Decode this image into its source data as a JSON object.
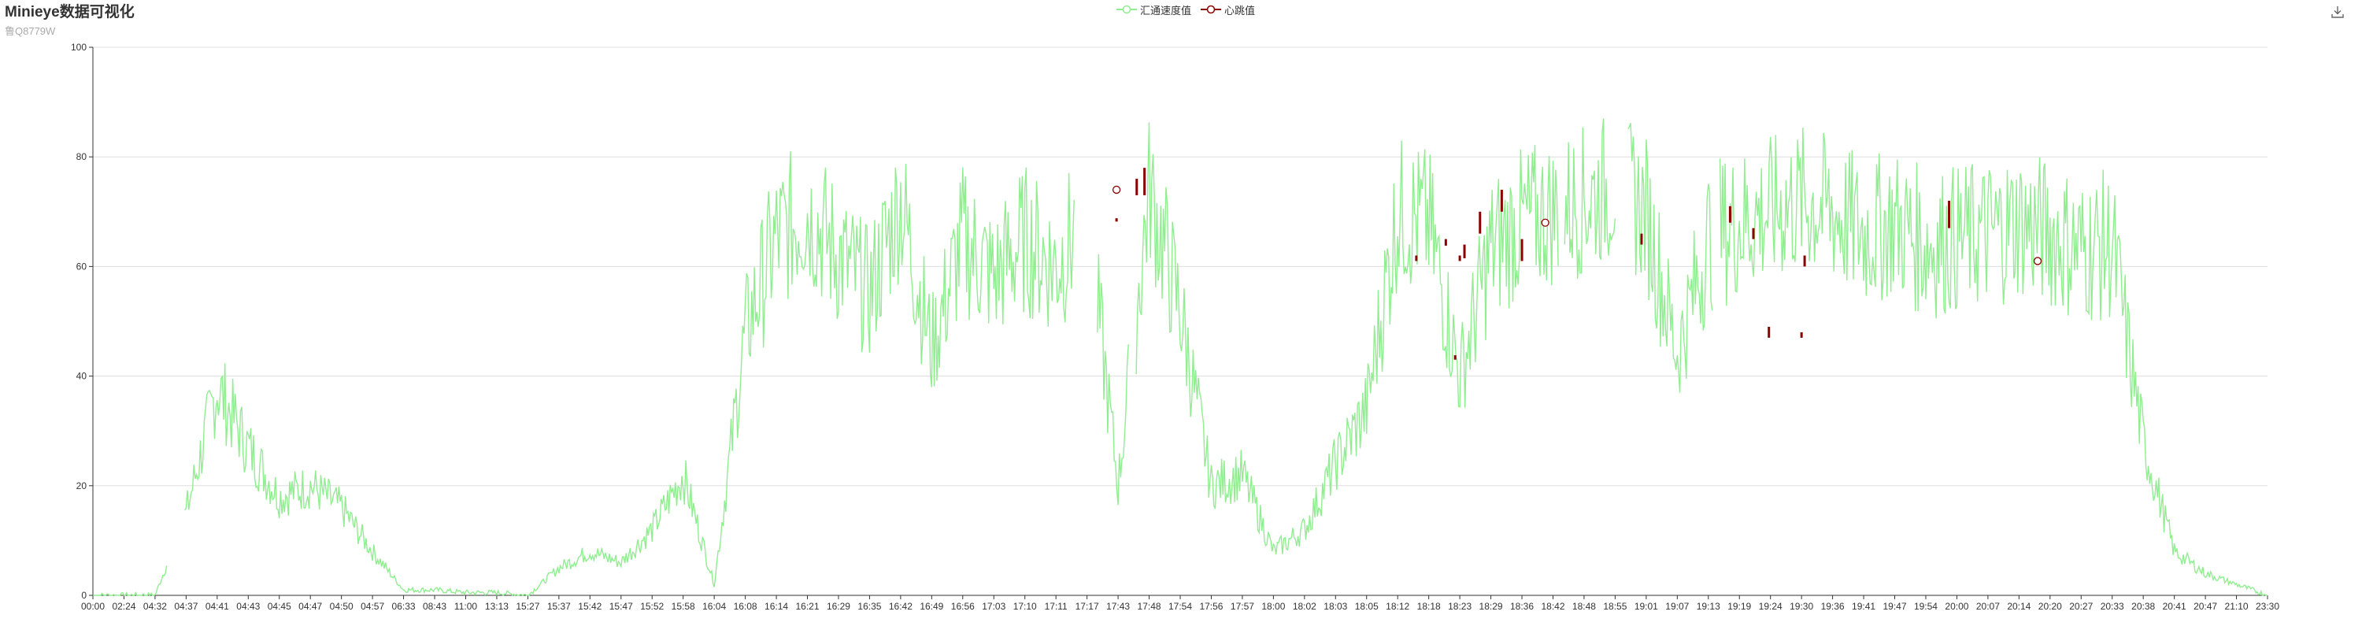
{
  "header": {
    "title": "Minieye数据可视化",
    "subtitle": "鲁Q8779W"
  },
  "toolbar": {
    "download_icon": "download-icon"
  },
  "colors": {
    "speed": "#90ee90",
    "heartbeat": "#8b0000",
    "grid": "#dddddd",
    "axis": "#333333"
  },
  "chart_data": {
    "type": "line",
    "legend": [
      "汇通速度值",
      "心跳值"
    ],
    "legend_position": "top-center",
    "grid": true,
    "ylim": [
      0,
      100
    ],
    "yticks": [
      0,
      20,
      40,
      60,
      80,
      100
    ],
    "categories": [
      "00:00",
      "02:24",
      "04:32",
      "04:37",
      "04:41",
      "04:43",
      "04:45",
      "04:47",
      "04:50",
      "04:57",
      "06:33",
      "08:43",
      "11:00",
      "13:13",
      "15:27",
      "15:37",
      "15:42",
      "15:47",
      "15:52",
      "15:58",
      "16:04",
      "16:08",
      "16:14",
      "16:21",
      "16:29",
      "16:35",
      "16:42",
      "16:49",
      "16:56",
      "17:03",
      "17:10",
      "17:11",
      "17:17",
      "17:43",
      "17:48",
      "17:54",
      "17:56",
      "17:57",
      "18:00",
      "18:02",
      "18:03",
      "18:05",
      "18:12",
      "18:18",
      "18:23",
      "18:29",
      "18:36",
      "18:42",
      "18:48",
      "18:55",
      "19:01",
      "19:07",
      "19:13",
      "19:19",
      "19:24",
      "19:30",
      "19:36",
      "19:41",
      "19:47",
      "19:54",
      "20:00",
      "20:07",
      "20:14",
      "20:20",
      "20:27",
      "20:33",
      "20:38",
      "20:41",
      "20:47",
      "21:10",
      "23:30"
    ],
    "series": [
      {
        "name": "汇通速度值",
        "values": [
          0,
          0,
          0,
          15,
          38,
          27,
          18,
          20,
          16,
          8,
          1,
          1,
          0.5,
          0.5,
          0,
          5,
          8,
          6,
          12,
          22,
          2,
          48,
          65,
          70,
          62,
          55,
          72,
          45,
          65,
          58,
          65,
          60,
          70,
          20,
          74,
          52,
          20,
          22,
          8,
          12,
          24,
          34,
          70,
          68,
          40,
          63,
          68,
          70,
          72,
          75,
          70,
          44,
          65,
          68,
          70,
          72,
          70,
          66,
          68,
          64,
          65,
          66,
          68,
          66,
          63,
          64,
          28,
          8,
          4,
          2,
          0
        ],
        "gaps": [
          [
            2.4,
            2.95
          ],
          [
            31.6,
            32.3
          ],
          [
            33.35,
            33.55
          ],
          [
            47.2,
            47.35
          ],
          [
            49.0,
            49.4
          ],
          [
            52.15,
            52.35
          ]
        ]
      },
      {
        "name": "心跳值",
        "type": "candlestick",
        "points": [
          [
            32.95,
            68.8,
            68.2
          ],
          [
            33.6,
            76,
            73
          ],
          [
            33.85,
            78,
            73
          ],
          [
            42.6,
            62,
            61
          ],
          [
            43.55,
            65,
            63.8
          ],
          [
            43.85,
            43.8,
            43
          ],
          [
            44.0,
            62,
            61
          ],
          [
            44.15,
            64,
            61.5
          ],
          [
            44.65,
            70,
            66
          ],
          [
            45.35,
            74,
            70
          ],
          [
            46.0,
            65,
            61
          ],
          [
            49.85,
            66,
            64
          ],
          [
            52.7,
            71,
            68
          ],
          [
            53.45,
            67,
            65
          ],
          [
            53.95,
            49,
            47
          ],
          [
            55.0,
            48,
            47
          ],
          [
            55.1,
            62,
            60
          ],
          [
            59.75,
            72,
            67
          ]
        ],
        "markers": [
          [
            32.95,
            74
          ],
          [
            46.75,
            68
          ],
          [
            62.6,
            61
          ]
        ]
      }
    ]
  }
}
